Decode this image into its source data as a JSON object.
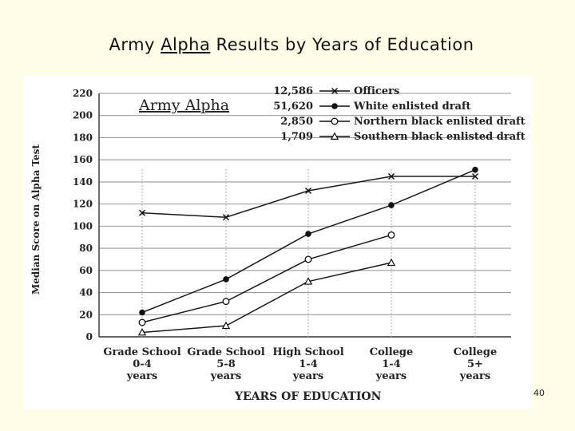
{
  "slide": {
    "title_before": "Army ",
    "title_underlined": "Alpha",
    "title_after": " Results by Years of Education",
    "page_number": "40"
  },
  "chart_data": {
    "type": "line",
    "title": "Army Alpha",
    "xlabel": "YEARS OF EDUCATION",
    "ylabel": "Median Score on Alpha Test",
    "ylim": [
      0,
      220
    ],
    "yticks": [
      0,
      20,
      40,
      60,
      80,
      100,
      120,
      140,
      160,
      180,
      200,
      220
    ],
    "categories": [
      [
        "Grade School",
        "0-4",
        "years"
      ],
      [
        "Grade School",
        "5-8",
        "years"
      ],
      [
        "High School",
        "1-4",
        "years"
      ],
      [
        "College",
        "1-4",
        "years"
      ],
      [
        "College",
        "5+",
        "years"
      ]
    ],
    "grid": true,
    "legend_position": "top-right",
    "series": [
      {
        "name": "Officers",
        "count": "12,586",
        "marker": "x",
        "values": [
          112,
          108,
          132,
          145,
          145
        ]
      },
      {
        "name": "White enlisted draft",
        "count": "51,620",
        "marker": "filled-circle",
        "values": [
          22,
          52,
          93,
          119,
          151
        ]
      },
      {
        "name": "Northern black enlisted draft",
        "count": "2,850",
        "marker": "open-circle",
        "values": [
          13,
          32,
          70,
          92,
          null
        ]
      },
      {
        "name": "Southern black enlisted draft",
        "count": "1,709",
        "marker": "open-triangle",
        "values": [
          4,
          10,
          50,
          67,
          null
        ]
      }
    ]
  }
}
